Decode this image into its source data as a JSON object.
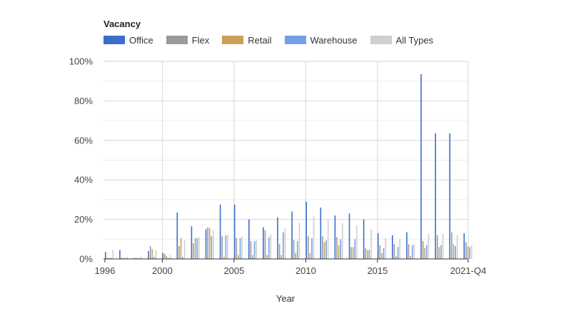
{
  "chart_data": {
    "type": "bar",
    "legend_title": "Vacancy",
    "xlabel": "Year",
    "ylabel": "",
    "ylim": [
      0,
      100
    ],
    "y_ticks": [
      0,
      20,
      40,
      60,
      80,
      100
    ],
    "y_tick_labels": [
      "0%",
      "20%",
      "40%",
      "60%",
      "80%",
      "100%"
    ],
    "x_tick_labels": [
      {
        "label": "1996",
        "index": 0
      },
      {
        "label": "2000",
        "index": 4
      },
      {
        "label": "2005",
        "index": 9
      },
      {
        "label": "2010",
        "index": 14
      },
      {
        "label": "2015",
        "index": 19
      },
      {
        "label": "2021-Q4",
        "index": 25
      }
    ],
    "categories": [
      "1996",
      "1997",
      "1998",
      "1999",
      "2000",
      "2001",
      "2002",
      "2003",
      "2004",
      "2005",
      "2006",
      "2007",
      "2008",
      "2009",
      "2010",
      "2011",
      "2012",
      "2013",
      "2014",
      "2015",
      "2016",
      "2017",
      "2018",
      "2019",
      "2020",
      "2021-Q4"
    ],
    "series": [
      {
        "name": "Office",
        "color": "#3a6fc9",
        "values": [
          3.5,
          4.5,
          0.5,
          4.0,
          3.0,
          23.5,
          16.5,
          15.0,
          27.5,
          27.5,
          20.0,
          16.0,
          21.0,
          24.0,
          29.0,
          26.0,
          22.0,
          23.0,
          20.0,
          13.0,
          12.0,
          13.5,
          93.5,
          63.5,
          63.5,
          13.0
        ]
      },
      {
        "name": "Flex",
        "color": "#9a9a9a",
        "values": [
          0.5,
          0.5,
          0.5,
          6.5,
          2.5,
          6.5,
          8.0,
          16.0,
          11.5,
          10.5,
          9.0,
          14.5,
          7.5,
          9.5,
          11.5,
          11.5,
          11.0,
          6.0,
          5.5,
          7.0,
          7.5,
          7.5,
          9.0,
          12.0,
          13.5,
          8.5
        ]
      },
      {
        "name": "Retail",
        "color": "#c9a15b",
        "values": [
          0.5,
          0.5,
          0.5,
          5.0,
          1.5,
          10.5,
          10.5,
          15.5,
          1.0,
          2.0,
          2.0,
          2.0,
          2.0,
          3.0,
          3.0,
          8.5,
          7.0,
          6.0,
          4.5,
          3.0,
          1.5,
          1.5,
          5.5,
          6.0,
          7.5,
          6.5
        ]
      },
      {
        "name": "Warehouse",
        "color": "#74a0e8",
        "values": [
          0.5,
          0.5,
          0.5,
          1.0,
          0.5,
          1.0,
          10.5,
          11.5,
          12.0,
          10.5,
          9.0,
          11.0,
          13.5,
          9.0,
          10.5,
          9.5,
          10.0,
          10.0,
          4.5,
          5.5,
          6.0,
          7.0,
          7.0,
          7.0,
          6.5,
          6.0
        ]
      },
      {
        "name": "All Types",
        "color": "#cfcfcf",
        "values": [
          4.5,
          1.0,
          1.0,
          4.5,
          2.0,
          9.5,
          11.0,
          14.5,
          12.0,
          11.5,
          9.5,
          12.5,
          15.5,
          18.5,
          21.5,
          20.0,
          18.0,
          17.0,
          15.0,
          10.5,
          10.0,
          7.5,
          12.5,
          13.0,
          12.0,
          7.0
        ]
      }
    ],
    "grid": true,
    "legend_position": "top-left"
  },
  "legend": {
    "title": "Vacancy",
    "items": [
      {
        "name": "Office",
        "color": "#3a6fc9"
      },
      {
        "name": "Flex",
        "color": "#9a9a9a"
      },
      {
        "name": "Retail",
        "color": "#c9a15b"
      },
      {
        "name": "Warehouse",
        "color": "#74a0e8"
      },
      {
        "name": "All Types",
        "color": "#cfcfcf"
      }
    ]
  }
}
